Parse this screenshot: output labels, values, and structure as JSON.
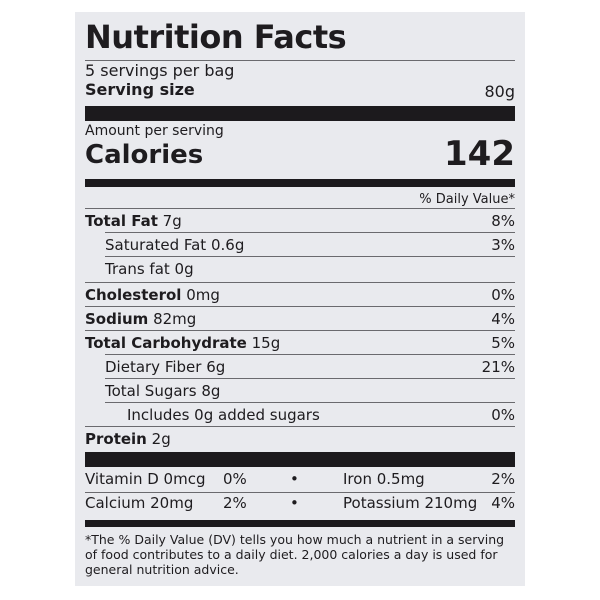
{
  "title": "Nutrition Facts",
  "servings": "5 servings per bag",
  "serving_size": {
    "label": "Serving size",
    "value": "80g"
  },
  "amount_per_serving": "Amount per serving",
  "calories": {
    "label": "Calories",
    "value": "142"
  },
  "dv_header": "% Daily Value*",
  "nutrients": [
    {
      "label": "Total Fat",
      "amount": "7g",
      "dv": "8%"
    },
    {
      "label": "Saturated Fat",
      "amount": "0.6g",
      "dv": "3%"
    },
    {
      "label": "Trans fat",
      "amount": "0g",
      "dv": ""
    },
    {
      "label": "Cholesterol",
      "amount": "0mg",
      "dv": "0%"
    },
    {
      "label": "Sodium",
      "amount": "82mg",
      "dv": "4%"
    },
    {
      "label": "Total Carbohydrate",
      "amount": "15g",
      "dv": "5%"
    },
    {
      "label": "Dietary Fiber",
      "amount": "6g",
      "dv": "21%"
    },
    {
      "label": "Total Sugars",
      "amount": "8g",
      "dv": ""
    },
    {
      "label": "Includes 0g added sugars",
      "amount": "",
      "dv": "0%"
    },
    {
      "label": "Protein",
      "amount": "2g",
      "dv": ""
    }
  ],
  "micros": [
    {
      "left": "Vitamin D 0mcg",
      "left_dv": "0%",
      "right": "Iron 0.5mg",
      "right_dv": "2%"
    },
    {
      "left": "Calcium 20mg",
      "left_dv": "2%",
      "right": "Potassium 210mg",
      "right_dv": "4%"
    }
  ],
  "bullet": "•",
  "footnote": "*The % Daily Value (DV) tells you how much a nutrient in a serving of food contributes to a daily diet. 2,000 calories a day is used for general nutrition advice."
}
